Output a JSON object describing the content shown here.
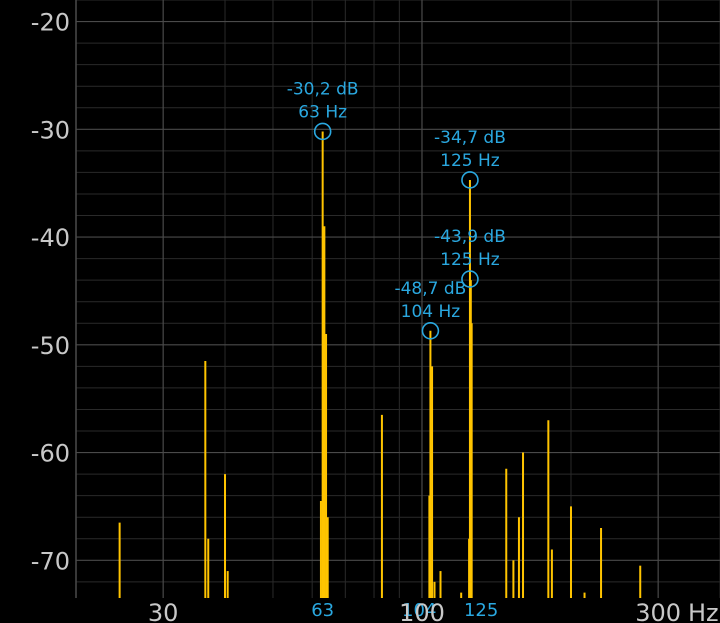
{
  "chart_data": {
    "type": "line",
    "x_scale": "log",
    "xlim": [
      20,
      400
    ],
    "ylim": [
      -73.5,
      -18
    ],
    "grid": true,
    "colors": {
      "background": "#000000",
      "grid_major": "#4a4a4a",
      "grid_minor": "#2a2a2a",
      "spectrum": "#ffc400",
      "marker": "#2aa8e0",
      "tick_text": "#c8c8c8"
    },
    "y_ticks": [
      {
        "value": -20,
        "label": "-20"
      },
      {
        "value": -30,
        "label": "-30"
      },
      {
        "value": -40,
        "label": "-40"
      },
      {
        "value": -50,
        "label": "-50"
      },
      {
        "value": -60,
        "label": "-60"
      },
      {
        "value": -70,
        "label": "-70"
      }
    ],
    "x_ticks": [
      {
        "value": 30,
        "label": "30"
      },
      {
        "value": 100,
        "label": "100"
      },
      {
        "value": 300,
        "label": "300"
      }
    ],
    "x_unit": "Hz",
    "peak_ticks": [
      {
        "value": 63,
        "label": "63"
      },
      {
        "value": 104,
        "label": "104"
      },
      {
        "value": 125,
        "label": "125"
      }
    ],
    "series": [
      {
        "points": [
          [
            24.5,
            -66.5
          ],
          [
            36.5,
            -51.5
          ],
          [
            37,
            -68
          ],
          [
            40,
            -62
          ],
          [
            40.5,
            -71
          ],
          [
            62.5,
            -64.5
          ],
          [
            63,
            -30.2
          ],
          [
            63.5,
            -39
          ],
          [
            64,
            -49
          ],
          [
            64.5,
            -66
          ],
          [
            83,
            -56.5
          ],
          [
            103.5,
            -64
          ],
          [
            104,
            -48.7
          ],
          [
            104.8,
            -52
          ],
          [
            106,
            -72
          ],
          [
            109,
            -71
          ],
          [
            120,
            -73
          ],
          [
            124.5,
            -68
          ],
          [
            125,
            -34.7
          ],
          [
            125.5,
            -44
          ],
          [
            126,
            -48
          ],
          [
            148,
            -61.5
          ],
          [
            153,
            -70
          ],
          [
            157,
            -66
          ],
          [
            160,
            -60
          ],
          [
            180,
            -57
          ],
          [
            183,
            -69
          ],
          [
            200,
            -65
          ],
          [
            213,
            -73
          ],
          [
            230,
            -67
          ],
          [
            276,
            -70.5
          ]
        ]
      }
    ],
    "annotations": [
      {
        "db": "-30,2 dB",
        "hz": "63 Hz",
        "x": 63,
        "y": -30.2
      },
      {
        "db": "-34,7 dB",
        "hz": "125 Hz",
        "x": 125,
        "y": -34.7
      },
      {
        "db": "-43,9 dB",
        "hz": "125 Hz",
        "x": 125,
        "y": -43.9
      },
      {
        "db": "-48,7 dB",
        "hz": "104 Hz",
        "x": 104,
        "y": -48.7
      }
    ]
  }
}
